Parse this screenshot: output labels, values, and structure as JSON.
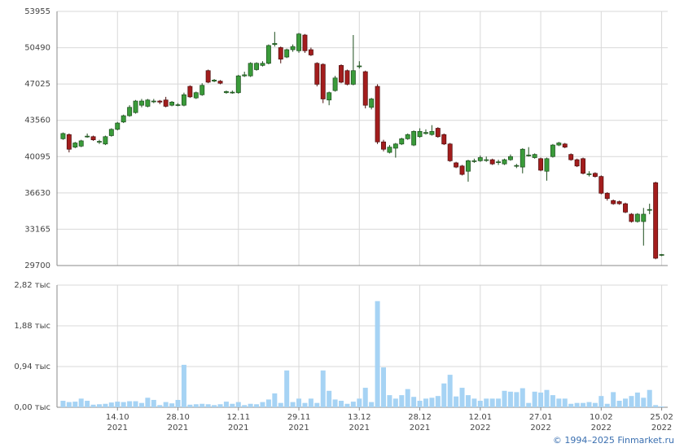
{
  "chart_data": [
    {
      "type": "candlestick",
      "up_color": "#3a9b3a",
      "down_color": "#a31d1d",
      "ylim": [
        29700,
        53955
      ],
      "yticks": [
        29700,
        33165,
        36630,
        40095,
        43560,
        47025,
        50490,
        53955
      ],
      "grid": true,
      "open": [
        41800,
        42200,
        41000,
        41100,
        42000,
        42000,
        41500,
        41300,
        42100,
        42700,
        43400,
        44000,
        44300,
        45000,
        44900,
        45350,
        45400,
        45500,
        45000,
        45000,
        45000,
        46800,
        45700,
        46000,
        48300,
        47300,
        47300,
        46200,
        46200,
        46200,
        47800,
        47800,
        48400,
        48800,
        49000,
        50800,
        50500,
        49600,
        50300,
        50200,
        51700,
        50300,
        49000,
        48900,
        45500,
        46400,
        48800,
        48300,
        47000,
        48700,
        48200,
        44800,
        46800,
        41500,
        40500,
        40900,
        41300,
        41800,
        41200,
        42000,
        42300,
        42200,
        42800,
        42200,
        41300,
        39500,
        39200,
        38700,
        39650,
        39700,
        39750,
        39800,
        39550,
        39400,
        39800,
        39200,
        39100,
        40200,
        40000,
        39900,
        38700,
        40100,
        41200,
        41300,
        40300,
        39800,
        39900,
        38400,
        38500,
        38200,
        36600,
        35900,
        35800,
        35600,
        34600,
        33900,
        33900,
        35000,
        37600,
        30700
      ],
      "high": [
        42400,
        42300,
        41500,
        41700,
        42300,
        42100,
        41700,
        42100,
        42800,
        43400,
        44100,
        45000,
        45500,
        45600,
        45600,
        45600,
        45500,
        45800,
        45400,
        45200,
        46200,
        46900,
        46300,
        47100,
        48400,
        47500,
        47400,
        46400,
        46400,
        47900,
        48200,
        49100,
        49100,
        49200,
        50800,
        52000,
        50600,
        50400,
        50800,
        51900,
        51800,
        50500,
        49100,
        49000,
        46300,
        47800,
        48900,
        48400,
        51700,
        49200,
        48300,
        45700,
        47000,
        41700,
        41200,
        41400,
        41900,
        42300,
        42600,
        42800,
        42700,
        43100,
        42900,
        42300,
        41400,
        39600,
        39300,
        39800,
        39900,
        40200,
        40100,
        39900,
        39800,
        39900,
        40300,
        39400,
        40900,
        41000,
        40400,
        40000,
        40000,
        41300,
        41500,
        41400,
        40400,
        39900,
        40000,
        38700,
        38600,
        38300,
        36700,
        36000,
        35900,
        35700,
        34700,
        34700,
        35200,
        35600,
        37700,
        30800
      ],
      "low": [
        41700,
        40500,
        40900,
        41000,
        41900,
        41600,
        41300,
        41200,
        42000,
        42600,
        43300,
        43900,
        44200,
        44800,
        44800,
        45200,
        45100,
        44800,
        44900,
        44900,
        44900,
        45700,
        45600,
        45900,
        47100,
        47200,
        47000,
        46100,
        46100,
        46100,
        47700,
        47700,
        48300,
        48700,
        48900,
        50600,
        49000,
        49500,
        50100,
        50000,
        50000,
        49700,
        46800,
        45200,
        45000,
        46300,
        47100,
        46900,
        46900,
        48500,
        44700,
        44600,
        41300,
        40600,
        40400,
        40000,
        41200,
        41700,
        41100,
        41900,
        42200,
        42100,
        41900,
        41200,
        39600,
        39000,
        38300,
        37700,
        39500,
        39600,
        39600,
        39300,
        39300,
        39300,
        39700,
        39000,
        38500,
        40100,
        39900,
        38700,
        37800,
        40000,
        41100,
        40900,
        39700,
        39100,
        38400,
        38200,
        38100,
        36500,
        35900,
        35500,
        35500,
        34700,
        33800,
        33800,
        31600,
        34600,
        30300,
        30600
      ],
      "close": [
        42300,
        40800,
        41400,
        41600,
        42050,
        41700,
        41550,
        42000,
        42700,
        43300,
        44000,
        44800,
        45400,
        45400,
        45500,
        45400,
        45300,
        44900,
        45300,
        45050,
        46000,
        45800,
        46200,
        46900,
        47200,
        47400,
        47100,
        46300,
        46250,
        47800,
        47900,
        49000,
        49000,
        49000,
        50700,
        50900,
        49400,
        50300,
        50600,
        51800,
        50200,
        49800,
        47000,
        45600,
        46200,
        47600,
        47200,
        47000,
        48300,
        48750,
        45000,
        45600,
        41500,
        40800,
        41000,
        41300,
        41800,
        42200,
        42500,
        42500,
        42400,
        42500,
        42000,
        41300,
        39700,
        39100,
        38400,
        39700,
        39700,
        40000,
        39800,
        39400,
        39600,
        39800,
        40100,
        39250,
        40800,
        40250,
        40300,
        38800,
        39900,
        41200,
        41400,
        41000,
        39800,
        39200,
        38500,
        38450,
        38200,
        36600,
        36100,
        35600,
        35600,
        34800,
        33900,
        34600,
        34600,
        35050,
        30400,
        30750
      ]
    },
    {
      "type": "bar",
      "color": "#a6d3f4",
      "ylim": [
        0,
        2.82
      ],
      "yticks": [
        {
          "value": 0,
          "label": "0,00 тыс"
        },
        {
          "value": 0.94,
          "label": "0,94 тыс"
        },
        {
          "value": 1.88,
          "label": "1,88 тыс"
        },
        {
          "value": 2.82,
          "label": "2,82 тыс"
        }
      ],
      "grid": true,
      "categories": [
        null,
        null,
        null,
        null,
        null,
        null,
        null,
        null,
        null,
        "14.10\n2021",
        null,
        null,
        null,
        null,
        null,
        null,
        null,
        null,
        null,
        "28.10\n2021",
        null,
        null,
        null,
        null,
        null,
        null,
        null,
        null,
        null,
        "12.11\n2021",
        null,
        null,
        null,
        null,
        null,
        null,
        null,
        null,
        null,
        "29.11\n2021",
        null,
        null,
        null,
        null,
        null,
        null,
        null,
        null,
        null,
        "13.12\n2021",
        null,
        null,
        null,
        null,
        null,
        null,
        null,
        null,
        null,
        "28.12\n2021",
        null,
        null,
        null,
        null,
        null,
        null,
        null,
        null,
        null,
        "12.01\n2022",
        null,
        null,
        null,
        null,
        null,
        null,
        null,
        null,
        null,
        "27.01\n2022",
        null,
        null,
        null,
        null,
        null,
        null,
        null,
        null,
        null,
        "10.02\n2022",
        null,
        null,
        null,
        null,
        null,
        null,
        null,
        null,
        null,
        "25.02\n2022"
      ],
      "values": [
        0.15,
        0.12,
        0.13,
        0.2,
        0.15,
        0.06,
        0.07,
        0.08,
        0.11,
        0.13,
        0.12,
        0.14,
        0.14,
        0.1,
        0.22,
        0.17,
        0.05,
        0.12,
        0.09,
        0.17,
        0.98,
        0.06,
        0.07,
        0.08,
        0.07,
        0.05,
        0.07,
        0.13,
        0.08,
        0.12,
        0.05,
        0.08,
        0.07,
        0.12,
        0.18,
        0.32,
        0.1,
        0.85,
        0.12,
        0.2,
        0.1,
        0.2,
        0.1,
        0.85,
        0.38,
        0.18,
        0.15,
        0.08,
        0.13,
        0.2,
        0.45,
        0.12,
        2.45,
        0.92,
        0.28,
        0.2,
        0.28,
        0.42,
        0.24,
        0.15,
        0.2,
        0.22,
        0.26,
        0.55,
        0.75,
        0.25,
        0.45,
        0.28,
        0.2,
        0.15,
        0.2,
        0.2,
        0.2,
        0.38,
        0.36,
        0.35,
        0.44,
        0.1,
        0.36,
        0.34,
        0.4,
        0.28,
        0.2,
        0.2,
        0.08,
        0.1,
        0.1,
        0.12,
        0.1,
        0.26,
        0.08,
        0.35,
        0.15,
        0.2,
        0.26,
        0.34,
        0.22,
        0.4,
        0.05,
        0.02
      ]
    }
  ],
  "footer": "© 1994–2025 Finmarket.ru"
}
